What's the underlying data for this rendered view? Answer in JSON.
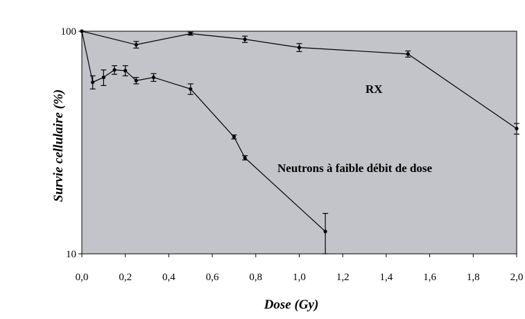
{
  "chart_data": {
    "type": "line",
    "title": "",
    "xlabel": "Dose (Gy)",
    "ylabel": "Survie cellulaire (%)",
    "xlim": [
      0,
      2
    ],
    "ylim": [
      10,
      100
    ],
    "yscale": "log",
    "x_ticks": [
      "0,0",
      "0,2",
      "0,4",
      "0,6",
      "0,8",
      "1,0",
      "1,2",
      "1,4",
      "1,6",
      "1,8",
      "2,0"
    ],
    "y_ticks": [
      "10",
      "100"
    ],
    "grid": false,
    "plot_background": "#c3c4c9",
    "series": [
      {
        "name": "RX",
        "color": "#000000",
        "points": [
          {
            "x": 0.0,
            "y": 100,
            "err": 0
          },
          {
            "x": 0.25,
            "y": 87,
            "err": 3
          },
          {
            "x": 0.5,
            "y": 97.5,
            "err": 1.5
          },
          {
            "x": 0.75,
            "y": 92,
            "err": 3
          },
          {
            "x": 1.0,
            "y": 84.5,
            "err": 3.5
          },
          {
            "x": 1.5,
            "y": 79,
            "err": 2.5
          },
          {
            "x": 2.0,
            "y": 36.5,
            "err": 2
          }
        ]
      },
      {
        "name": "Neutrons à faible débit de dose",
        "color": "#000000",
        "points": [
          {
            "x": 0.0,
            "y": 100,
            "err": 0
          },
          {
            "x": 0.05,
            "y": 59,
            "err": 4
          },
          {
            "x": 0.1,
            "y": 62,
            "err": 5
          },
          {
            "x": 0.15,
            "y": 67,
            "err": 3
          },
          {
            "x": 0.2,
            "y": 66.5,
            "err": 3.5
          },
          {
            "x": 0.25,
            "y": 60,
            "err": 2
          },
          {
            "x": 0.33,
            "y": 62,
            "err": 2.5
          },
          {
            "x": 0.5,
            "y": 55,
            "err": 3
          },
          {
            "x": 0.7,
            "y": 33.5,
            "err": 0.7
          },
          {
            "x": 0.75,
            "y": 27,
            "err": 0.6
          },
          {
            "x": 1.12,
            "y": 12.6,
            "err": 2.6
          }
        ]
      }
    ]
  }
}
